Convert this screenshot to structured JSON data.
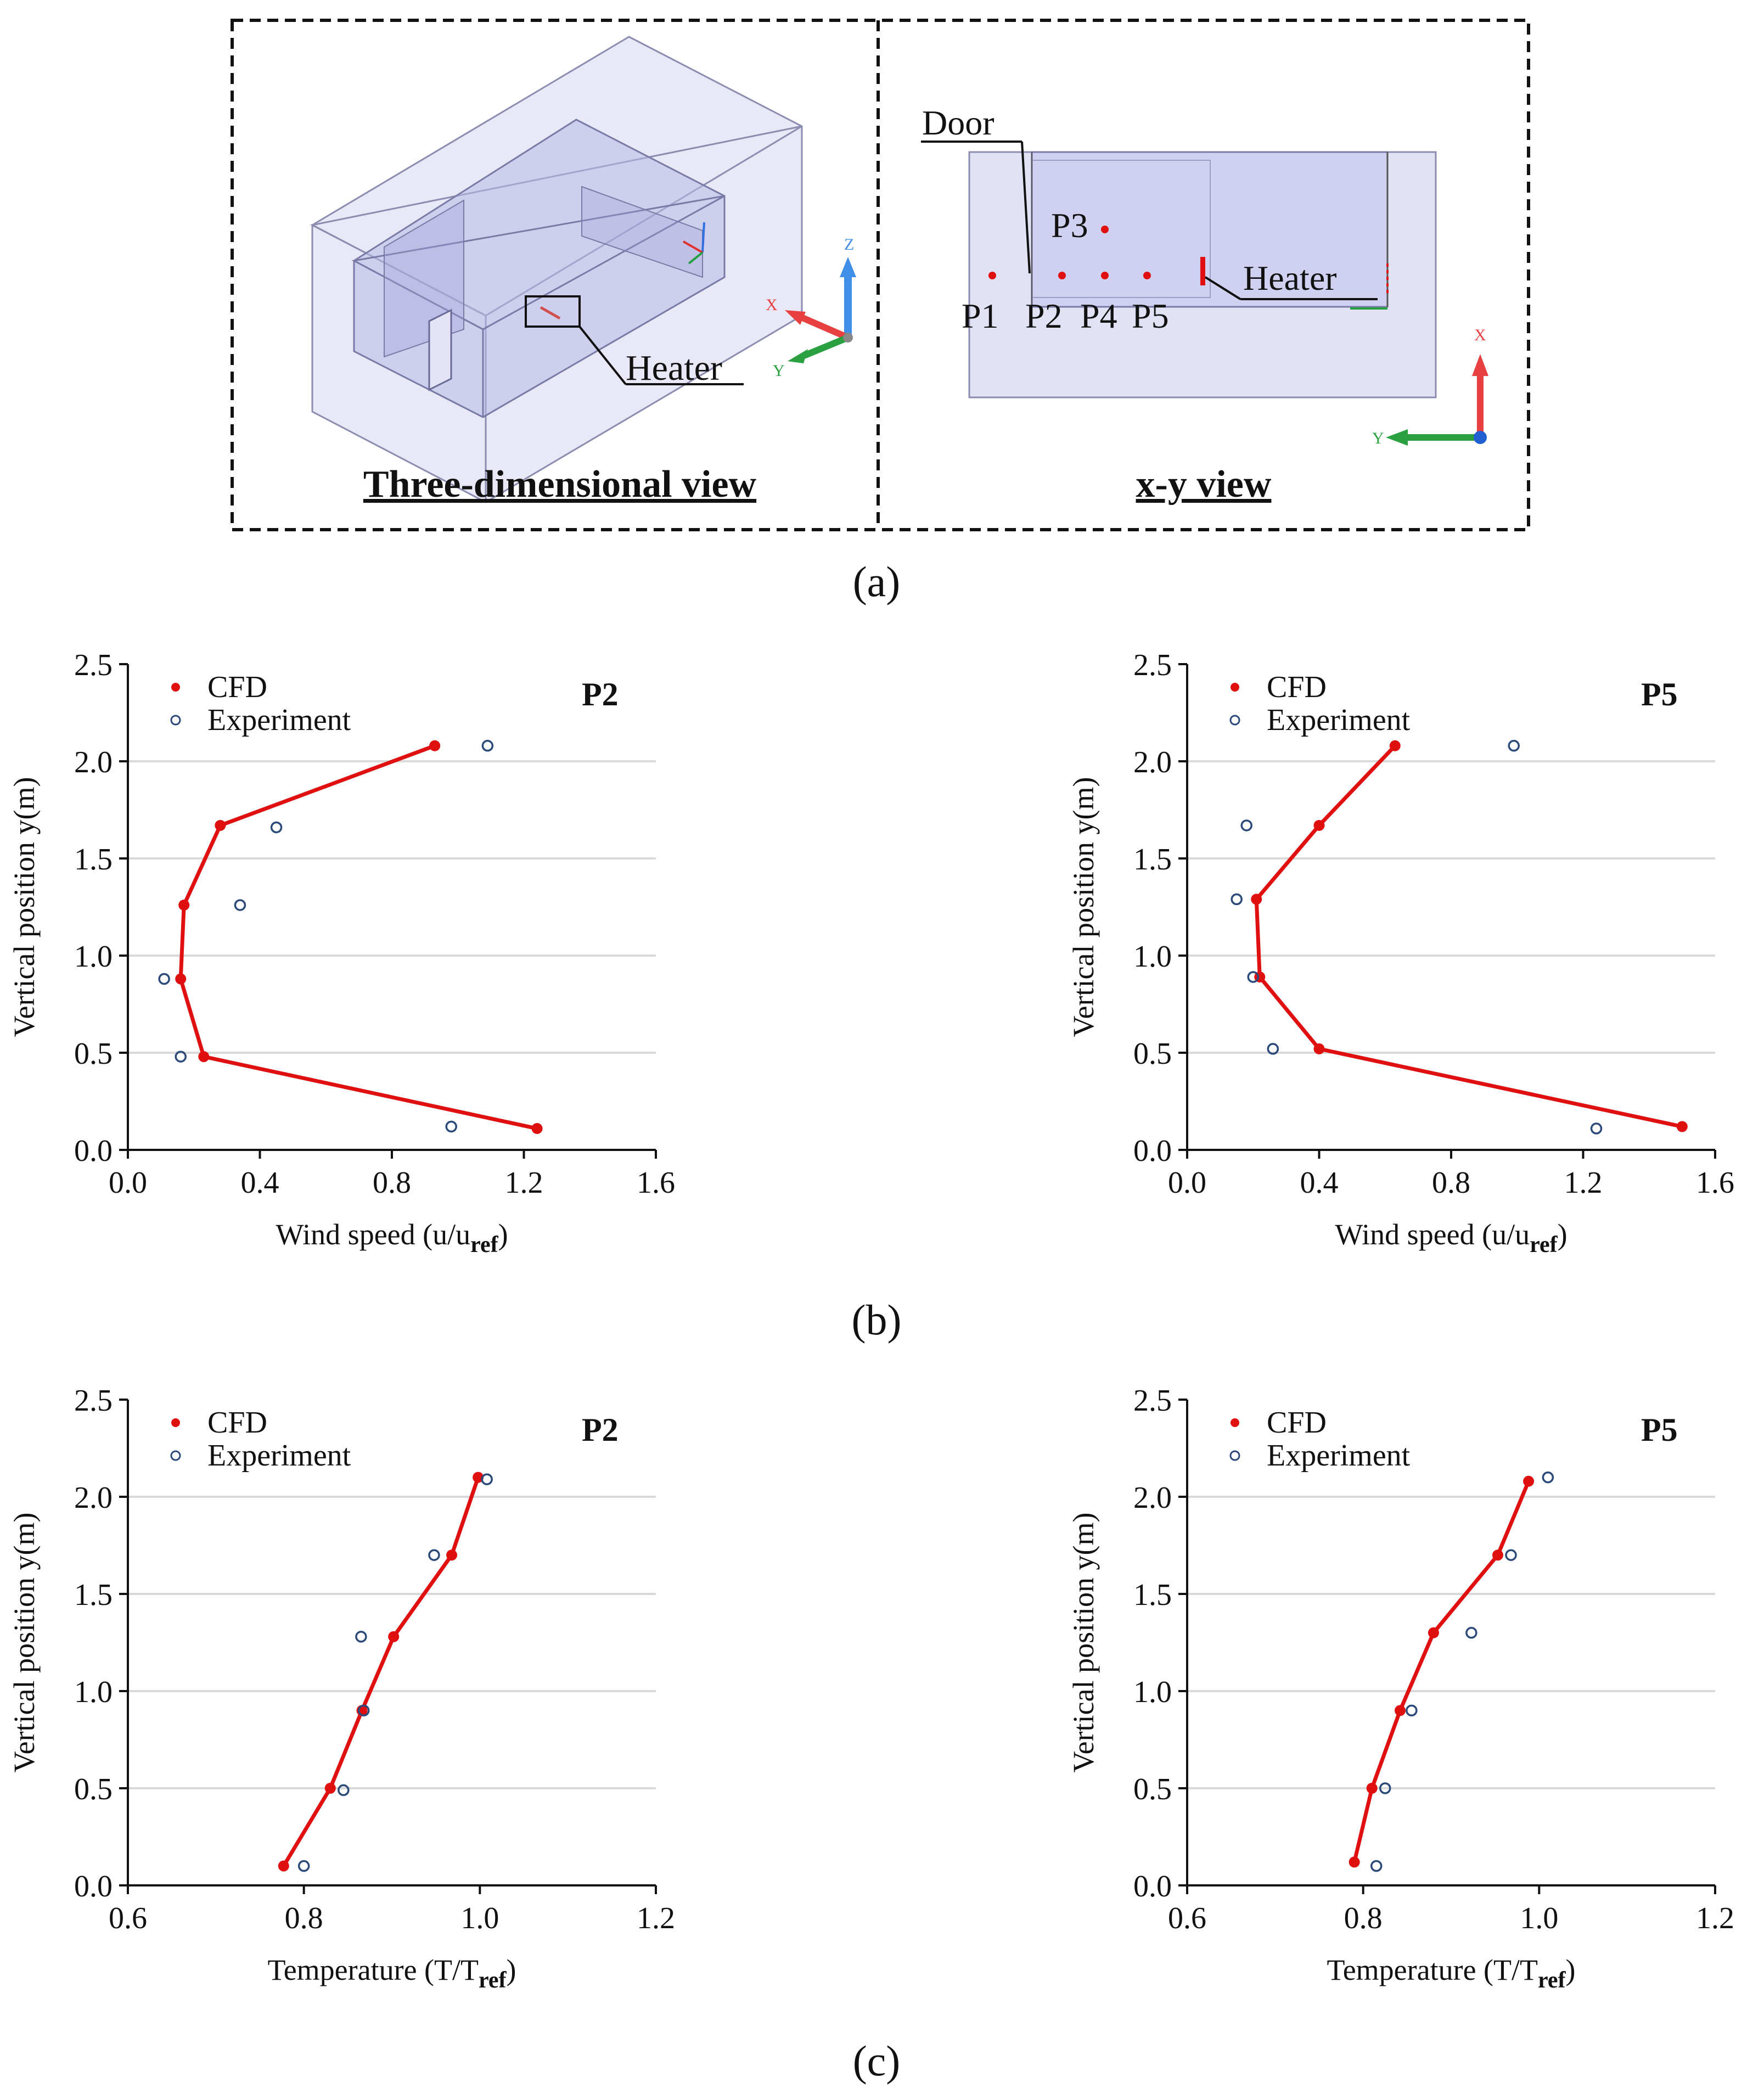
{
  "panel_a": {
    "caption": "(a)",
    "left_title": "Three-dimensional view",
    "right_title": "x-y view",
    "heater_label_3d": "Heater",
    "door_label": "Door",
    "heater_label_xy": "Heater",
    "points": [
      "P1",
      "P2",
      "P3",
      "P4",
      "P5"
    ],
    "axis_letters_3d": {
      "x": "X",
      "y": "Y",
      "z": "Z"
    },
    "axis_letters_xy": {
      "x": "X",
      "y": "Y"
    }
  },
  "caption_b": "(b)",
  "caption_c": "(c)",
  "colors": {
    "cfd": "#e01010",
    "experiment": "#2b4a7a",
    "grid": "#d9d9d9",
    "box_fill": "#c8c8ec",
    "box_edge": "#8c8cb0"
  },
  "chart_data": [
    {
      "id": "b-p2",
      "type": "line",
      "title": "P2",
      "xlabel": "Wind speed (u/u",
      "xlabel_sub": "ref",
      "xlabel_close": ")",
      "ylabel": "Vertical position y(m)",
      "xlim": [
        0.0,
        1.6
      ],
      "ylim": [
        0.0,
        2.5
      ],
      "xticks": [
        "0.0",
        "0.4",
        "0.8",
        "1.2",
        "1.6"
      ],
      "yticks": [
        "0.0",
        "0.5",
        "1.0",
        "1.5",
        "2.0",
        "2.5"
      ],
      "legend": [
        "CFD",
        "Experiment"
      ],
      "series": [
        {
          "name": "CFD",
          "style": "line-dot",
          "x": [
            1.24,
            0.23,
            0.16,
            0.17,
            0.28,
            0.93
          ],
          "y": [
            0.11,
            0.48,
            0.88,
            1.26,
            1.67,
            2.08
          ]
        },
        {
          "name": "Experiment",
          "style": "open-circle",
          "x": [
            0.98,
            0.16,
            0.11,
            0.34,
            0.45,
            1.09
          ],
          "y": [
            0.12,
            0.48,
            0.88,
            1.26,
            1.66,
            2.08
          ]
        }
      ]
    },
    {
      "id": "b-p5",
      "type": "line",
      "title": "P5",
      "xlabel": "Wind speed (u/u",
      "xlabel_sub": "ref",
      "xlabel_close": ")",
      "ylabel": "Vertical position y(m)",
      "xlim": [
        0.0,
        1.6
      ],
      "ylim": [
        0.0,
        2.5
      ],
      "xticks": [
        "0.0",
        "0.4",
        "0.8",
        "1.2",
        "1.6"
      ],
      "yticks": [
        "0.0",
        "0.5",
        "1.0",
        "1.5",
        "2.0",
        "2.5"
      ],
      "legend": [
        "CFD",
        "Experiment"
      ],
      "series": [
        {
          "name": "CFD",
          "style": "line-dot",
          "x": [
            1.5,
            0.4,
            0.22,
            0.21,
            0.4,
            0.63
          ],
          "y": [
            0.12,
            0.52,
            0.89,
            1.29,
            1.67,
            2.08
          ]
        },
        {
          "name": "Experiment",
          "style": "open-circle",
          "x": [
            1.24,
            0.26,
            0.2,
            0.15,
            0.18,
            0.99
          ],
          "y": [
            0.11,
            0.52,
            0.89,
            1.29,
            1.67,
            2.08
          ]
        }
      ]
    },
    {
      "id": "c-p2",
      "type": "line",
      "title": "P2",
      "xlabel": "Temperature (T/T",
      "xlabel_sub": "ref",
      "xlabel_close": ")",
      "ylabel": "Vertical position y(m)",
      "xlim": [
        0.6,
        1.2
      ],
      "ylim": [
        0.0,
        2.5
      ],
      "xticks": [
        "0.6",
        "0.8",
        "1.0",
        "1.2"
      ],
      "yticks": [
        "0.0",
        "0.5",
        "1.0",
        "1.5",
        "2.0",
        "2.5"
      ],
      "legend": [
        "CFD",
        "Experiment"
      ],
      "series": [
        {
          "name": "CFD",
          "style": "line-dot",
          "x": [
            0.777,
            0.83,
            0.866,
            0.902,
            0.968,
            0.998
          ],
          "y": [
            0.1,
            0.5,
            0.9,
            1.28,
            1.7,
            2.1
          ]
        },
        {
          "name": "Experiment",
          "style": "open-circle",
          "x": [
            0.8,
            0.845,
            0.868,
            0.865,
            0.948,
            1.008
          ],
          "y": [
            0.1,
            0.49,
            0.9,
            1.28,
            1.7,
            2.09
          ]
        }
      ]
    },
    {
      "id": "c-p5",
      "type": "line",
      "title": "P5",
      "xlabel": "Temperature (T/T",
      "xlabel_sub": "ref",
      "xlabel_close": ")",
      "ylabel": "Vertical position y(m)",
      "xlim": [
        0.6,
        1.2
      ],
      "ylim": [
        0.0,
        2.5
      ],
      "xticks": [
        "0.6",
        "0.8",
        "1.0",
        "1.2"
      ],
      "yticks": [
        "0.0",
        "0.5",
        "1.0",
        "1.5",
        "2.0",
        "2.5"
      ],
      "legend": [
        "CFD",
        "Experiment"
      ],
      "series": [
        {
          "name": "CFD",
          "style": "line-dot",
          "x": [
            0.79,
            0.81,
            0.842,
            0.88,
            0.953,
            0.988
          ],
          "y": [
            0.12,
            0.5,
            0.9,
            1.3,
            1.7,
            2.08
          ]
        },
        {
          "name": "Experiment",
          "style": "open-circle",
          "x": [
            0.815,
            0.825,
            0.855,
            0.923,
            0.968,
            1.01
          ],
          "y": [
            0.1,
            0.5,
            0.9,
            1.3,
            1.7,
            2.1
          ]
        }
      ]
    }
  ]
}
